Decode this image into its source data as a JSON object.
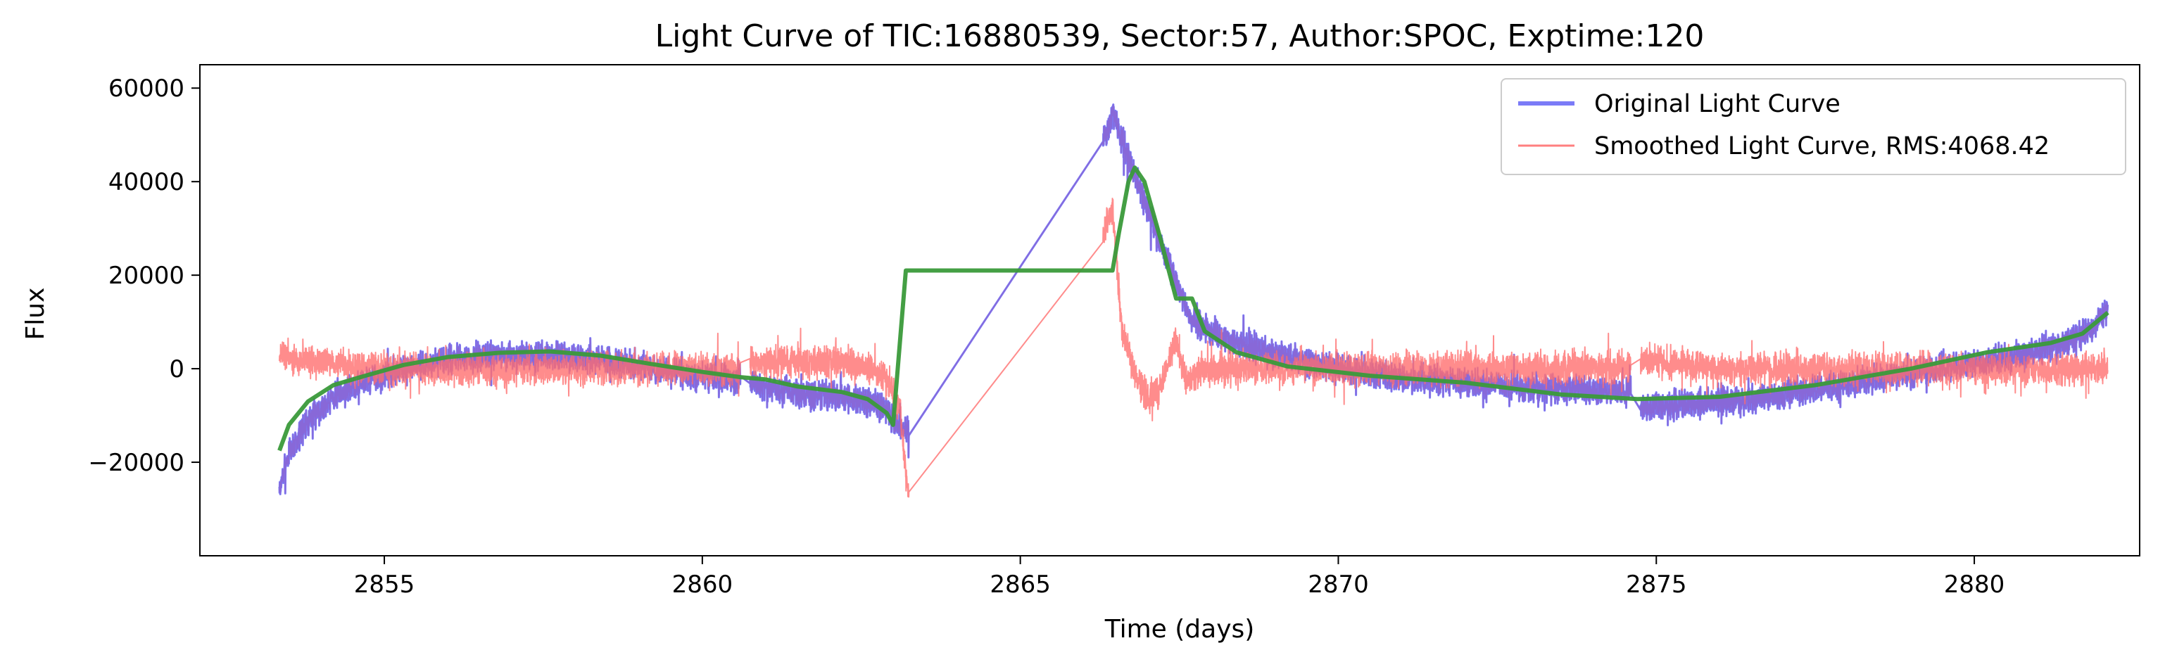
{
  "chart_data": {
    "type": "line",
    "title": "Light Curve of TIC:16880539, Sector:57, Author:SPOC, Exptime:120",
    "xlabel": "Time (days)",
    "ylabel": "Flux",
    "xlim": [
      2852.1,
      2882.6
    ],
    "ylim": [
      -40000,
      65000
    ],
    "xticks": [
      2855,
      2860,
      2865,
      2870,
      2875,
      2880
    ],
    "yticks": [
      -20000,
      0,
      20000,
      40000,
      60000
    ],
    "grid": false,
    "legend_position": "top-right",
    "colors": {
      "original": "#7b7bf7",
      "smoothed": "#ff7f7f",
      "trend": "#3a9a3a"
    },
    "series": [
      {
        "name": "Original Light Curve",
        "noise": 4200,
        "points": [
          [
            2853.35,
            -26000
          ],
          [
            2853.5,
            -18000
          ],
          [
            2853.8,
            -11000
          ],
          [
            2854.2,
            -6000
          ],
          [
            2854.7,
            -2500
          ],
          [
            2855.3,
            0
          ],
          [
            2856,
            1800
          ],
          [
            2856.8,
            2700
          ],
          [
            2857.6,
            2500
          ],
          [
            2858.4,
            1800
          ],
          [
            2859.2,
            0
          ],
          [
            2860,
            -1500
          ],
          [
            2860.6,
            -2500
          ],
          [
            2860.75,
            -3500
          ],
          [
            2861.5,
            -5000
          ],
          [
            2862.2,
            -6000
          ],
          [
            2862.6,
            -7000
          ],
          [
            2862.9,
            -9000
          ],
          [
            2863.2,
            -14000
          ],
          [
            2866.35,
            50000
          ],
          [
            2866.45,
            55000
          ],
          [
            2866.7,
            45000
          ],
          [
            2867,
            34000
          ],
          [
            2867.4,
            20000
          ],
          [
            2867.7,
            10000
          ],
          [
            2868.3,
            6000
          ],
          [
            2869,
            3000
          ],
          [
            2870,
            0
          ],
          [
            2871,
            -2000
          ],
          [
            2872,
            -3000
          ],
          [
            2873,
            -4000
          ],
          [
            2874,
            -4500
          ],
          [
            2874.6,
            -5000
          ],
          [
            2874.75,
            -8000
          ],
          [
            2875.5,
            -7500
          ],
          [
            2876.5,
            -6500
          ],
          [
            2877.5,
            -4500
          ],
          [
            2878.5,
            -2000
          ],
          [
            2879.5,
            0
          ],
          [
            2880.5,
            2000
          ],
          [
            2881.3,
            5000
          ],
          [
            2881.8,
            8000
          ],
          [
            2882.1,
            13000
          ]
        ]
      },
      {
        "name": "Smoothed Light Curve, RMS:4068.42",
        "noise": 4800,
        "points": [
          [
            2853.35,
            3000
          ],
          [
            2853.6,
            2000
          ],
          [
            2854,
            1200
          ],
          [
            2855,
            0
          ],
          [
            2856,
            0
          ],
          [
            2857,
            0
          ],
          [
            2858,
            0
          ],
          [
            2859,
            0
          ],
          [
            2860,
            0
          ],
          [
            2860.6,
            0
          ],
          [
            2860.75,
            1500
          ],
          [
            2861.5,
            1500
          ],
          [
            2862.2,
            1500
          ],
          [
            2862.6,
            0
          ],
          [
            2862.9,
            -2000
          ],
          [
            2863.1,
            -8000
          ],
          [
            2863.2,
            -22000
          ],
          [
            2863.3,
            -34000
          ],
          [
            2866.3,
            29000
          ],
          [
            2866.45,
            34000
          ],
          [
            2866.6,
            8000
          ],
          [
            2866.8,
            -1000
          ],
          [
            2867,
            -6000
          ],
          [
            2867.2,
            -4000
          ],
          [
            2867.45,
            6000
          ],
          [
            2867.6,
            -3000
          ],
          [
            2867.9,
            0
          ],
          [
            2868.5,
            0
          ],
          [
            2870,
            0
          ],
          [
            2872,
            0
          ],
          [
            2874,
            0
          ],
          [
            2874.6,
            0
          ],
          [
            2874.75,
            2000
          ],
          [
            2876,
            0
          ],
          [
            2878,
            0
          ],
          [
            2880,
            0
          ],
          [
            2881.5,
            0
          ],
          [
            2882.1,
            0
          ]
        ]
      },
      {
        "points": [
          [
            2853.35,
            -17500
          ],
          [
            2853.5,
            -12000
          ],
          [
            2853.8,
            -7000
          ],
          [
            2854.2,
            -3500
          ],
          [
            2854.7,
            -1500
          ],
          [
            2855.3,
            800
          ],
          [
            2856,
            2500
          ],
          [
            2856.8,
            3400
          ],
          [
            2857.6,
            3700
          ],
          [
            2858.4,
            2800
          ],
          [
            2859.2,
            1000
          ],
          [
            2860,
            -700
          ],
          [
            2860.6,
            -1800
          ],
          [
            2861,
            -2300
          ],
          [
            2861.5,
            -3800
          ],
          [
            2862.2,
            -5000
          ],
          [
            2862.6,
            -6500
          ],
          [
            2862.9,
            -9500
          ],
          [
            2863,
            -12000
          ],
          [
            2863.2,
            21000
          ],
          [
            2866.45,
            21000
          ],
          [
            2866.55,
            29000
          ],
          [
            2866.7,
            40000
          ],
          [
            2866.8,
            43000
          ],
          [
            2866.95,
            40000
          ],
          [
            2867.2,
            28000
          ],
          [
            2867.45,
            15000
          ],
          [
            2867.7,
            15000
          ],
          [
            2867.9,
            8000
          ],
          [
            2868.4,
            3500
          ],
          [
            2869.2,
            500
          ],
          [
            2870.5,
            -1500
          ],
          [
            2872,
            -3000
          ],
          [
            2873.5,
            -5500
          ],
          [
            2874.7,
            -6500
          ],
          [
            2876,
            -6000
          ],
          [
            2877.5,
            -3500
          ],
          [
            2879,
            0
          ],
          [
            2880.2,
            3500
          ],
          [
            2881.2,
            5500
          ],
          [
            2881.7,
            7500
          ],
          [
            2882.1,
            12000
          ]
        ]
      }
    ]
  }
}
